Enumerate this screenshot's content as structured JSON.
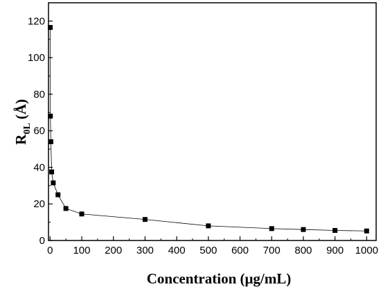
{
  "chart_data": {
    "type": "line",
    "xlabel": "Concentration (μg/mL)",
    "ylabel": {
      "main": "R",
      "sub": "0L",
      "rest": " (Å)"
    },
    "xlim": [
      -5,
      1030
    ],
    "ylim": [
      0,
      130
    ],
    "xticks": [
      0,
      100,
      200,
      300,
      400,
      500,
      600,
      700,
      800,
      900,
      1000
    ],
    "yticks": [
      0,
      20,
      40,
      60,
      80,
      100,
      120
    ],
    "grid": false,
    "marker": "square",
    "line_color": "#000000",
    "series": [
      {
        "x": [
          0.5,
          1,
          2.5,
          5,
          10,
          25,
          50,
          100,
          300,
          500,
          700,
          800,
          900,
          1000
        ],
        "y": [
          116.5,
          68,
          54,
          37.5,
          31.5,
          25,
          17.5,
          14.5,
          11.5,
          8,
          6.5,
          6,
          5.5,
          5.2
        ]
      }
    ]
  }
}
